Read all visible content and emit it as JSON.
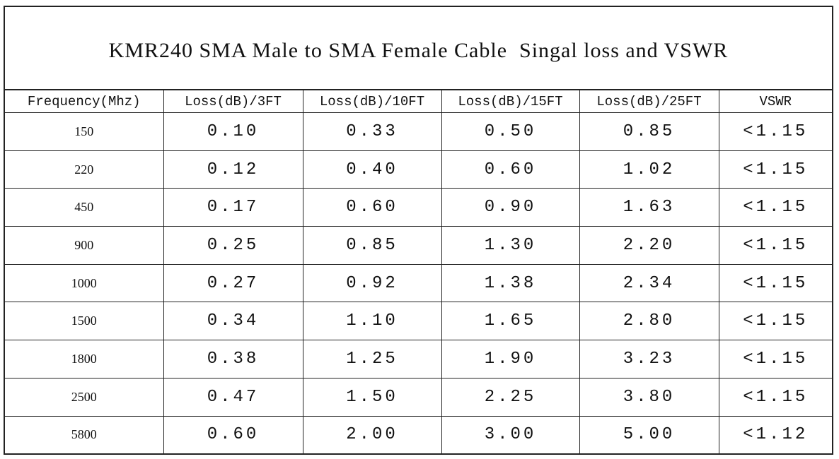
{
  "header": {
    "title": "KMR240 SMA Male to SMA Female Cable  Singal loss and VSWR"
  },
  "table": {
    "columns": [
      "Frequency(Mhz)",
      "Loss(dB)/3FT",
      "Loss(dB)/10FT",
      "Loss(dB)/15FT",
      "Loss(dB)/25FT",
      "VSWR"
    ],
    "rows": [
      [
        "150",
        "0.10",
        "0.33",
        "0.50",
        "0.85",
        "<1.15"
      ],
      [
        "220",
        "0.12",
        "0.40",
        "0.60",
        "1.02",
        "<1.15"
      ],
      [
        "450",
        "0.17",
        "0.60",
        "0.90",
        "1.63",
        "<1.15"
      ],
      [
        "900",
        "0.25",
        "0.85",
        "1.30",
        "2.20",
        "<1.15"
      ],
      [
        "1000",
        "0.27",
        "0.92",
        "1.38",
        "2.34",
        "<1.15"
      ],
      [
        "1500",
        "0.34",
        "1.10",
        "1.65",
        "2.80",
        "<1.15"
      ],
      [
        "1800",
        "0.38",
        "1.25",
        "1.90",
        "3.23",
        "<1.15"
      ],
      [
        "2500",
        "0.47",
        "1.50",
        "2.25",
        "3.80",
        "<1.15"
      ],
      [
        "5800",
        "0.60",
        "2.00",
        "3.00",
        "5.00",
        "<1.12"
      ]
    ]
  }
}
